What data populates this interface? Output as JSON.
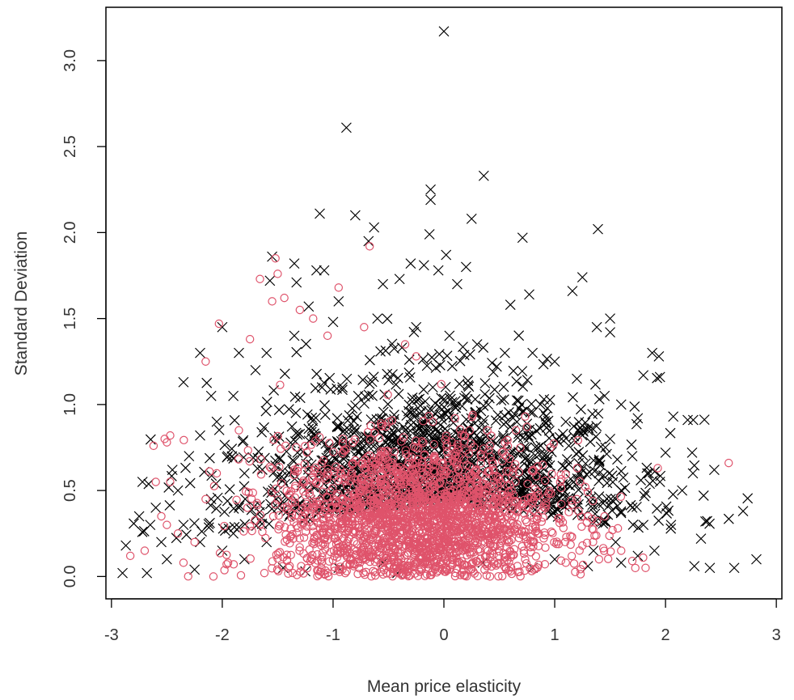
{
  "chart_data": {
    "type": "scatter",
    "title": "",
    "xlabel": "Mean price elasticity",
    "ylabel": "Standard Deviation",
    "xlim": [
      -3.05,
      3.05
    ],
    "ylim": [
      -0.13,
      3.31
    ],
    "x_ticks": [
      -3,
      -2,
      -1,
      0,
      1,
      2,
      3
    ],
    "x_tick_labels": [
      "-3",
      "-2",
      "-1",
      "0",
      "1",
      "2",
      "3"
    ],
    "y_ticks": [
      0.0,
      0.5,
      1.0,
      1.5,
      2.0,
      2.5,
      3.0
    ],
    "y_tick_labels": [
      "0.0",
      "0.5",
      "1.0",
      "1.5",
      "2.0",
      "2.5",
      "3.0"
    ],
    "grid": false,
    "legend": "none",
    "series": [
      {
        "marker": "cross",
        "color": "#000000",
        "points": [
          [
            0.0,
            3.17
          ],
          [
            -0.88,
            2.61
          ],
          [
            0.36,
            2.33
          ],
          [
            -0.12,
            2.25
          ],
          [
            -0.12,
            2.19
          ],
          [
            -1.12,
            2.11
          ],
          [
            -0.8,
            2.1
          ],
          [
            0.25,
            2.08
          ],
          [
            -0.63,
            2.03
          ],
          [
            1.39,
            2.02
          ],
          [
            -0.13,
            1.99
          ],
          [
            0.71,
            1.97
          ],
          [
            -0.68,
            1.95
          ],
          [
            0.02,
            1.87
          ],
          [
            -1.55,
            1.86
          ],
          [
            -1.35,
            1.82
          ],
          [
            -0.3,
            1.82
          ],
          [
            -0.18,
            1.81
          ],
          [
            0.2,
            1.8
          ],
          [
            -1.15,
            1.78
          ],
          [
            -1.08,
            1.78
          ],
          [
            -0.05,
            1.78
          ],
          [
            1.25,
            1.74
          ],
          [
            -0.4,
            1.73
          ],
          [
            -1.57,
            1.72
          ],
          [
            -1.33,
            1.71
          ],
          [
            -0.55,
            1.7
          ],
          [
            0.12,
            1.7
          ],
          [
            1.16,
            1.66
          ],
          [
            0.77,
            1.64
          ],
          [
            -0.95,
            1.6
          ],
          [
            0.6,
            1.58
          ],
          [
            -1.22,
            1.57
          ],
          [
            1.5,
            1.5
          ],
          [
            -2.0,
            1.45
          ],
          [
            1.38,
            1.45
          ],
          [
            1.5,
            1.42
          ],
          [
            1.88,
            1.3
          ],
          [
            1.94,
            1.28
          ],
          [
            -2.35,
            1.13
          ],
          [
            1.95,
            1.16
          ],
          [
            1.8,
            1.17
          ],
          [
            2.25,
            0.91
          ],
          [
            2.2,
            0.91
          ],
          [
            2.07,
            0.93
          ],
          [
            2.44,
            0.62
          ],
          [
            2.7,
            0.38
          ],
          [
            2.82,
            0.1
          ],
          [
            2.62,
            0.05
          ],
          [
            2.4,
            0.05
          ],
          [
            2.26,
            0.06
          ],
          [
            2.32,
            0.22
          ],
          [
            2.36,
            0.32
          ],
          [
            2.24,
            0.72
          ],
          [
            -2.9,
            0.02
          ],
          [
            -2.87,
            0.18
          ],
          [
            -2.68,
            0.02
          ],
          [
            -2.72,
            0.55
          ],
          [
            -2.5,
            0.1
          ],
          [
            -2.25,
            0.04
          ],
          [
            -2.6,
            0.4
          ],
          [
            -2.45,
            0.62
          ],
          [
            -2.2,
            0.2
          ],
          [
            -2.05,
            0.9
          ],
          [
            -1.9,
            1.05
          ],
          [
            -1.7,
            1.2
          ],
          [
            -2.2,
            0.82
          ],
          [
            -2.3,
            0.7
          ],
          [
            -1.95,
            0.7
          ],
          [
            -1.8,
            0.6
          ],
          [
            -2.1,
            0.45
          ],
          [
            -2.4,
            0.5
          ],
          [
            -2.65,
            0.3
          ],
          [
            -2.75,
            0.35
          ],
          [
            -2.55,
            0.2
          ],
          [
            -2.35,
            0.3
          ],
          [
            -1.45,
            0.05
          ],
          [
            -1.25,
            0.03
          ],
          [
            -0.95,
            0.05
          ],
          [
            -0.55,
            0.08
          ],
          [
            -0.42,
            0.02
          ],
          [
            0.35,
            0.08
          ],
          [
            0.8,
            0.05
          ],
          [
            1.0,
            0.1
          ],
          [
            1.3,
            0.06
          ],
          [
            1.6,
            0.08
          ],
          [
            1.75,
            0.12
          ],
          [
            1.9,
            0.15
          ],
          [
            2.05,
            0.3
          ],
          [
            2.15,
            0.5
          ],
          [
            1.95,
            0.55
          ],
          [
            2.0,
            0.72
          ],
          [
            1.75,
            0.92
          ],
          [
            1.6,
            1.0
          ],
          [
            1.45,
            1.05
          ],
          [
            1.2,
            1.15
          ],
          [
            1.0,
            1.25
          ],
          [
            0.8,
            1.3
          ],
          [
            0.55,
            1.3
          ],
          [
            0.3,
            1.35
          ],
          [
            0.05,
            1.4
          ],
          [
            -0.25,
            1.45
          ],
          [
            -0.6,
            1.5
          ],
          [
            -1.0,
            1.48
          ],
          [
            -1.35,
            1.4
          ],
          [
            -1.6,
            1.3
          ],
          [
            -1.85,
            1.3
          ],
          [
            -2.2,
            1.3
          ],
          [
            -2.1,
            1.05
          ],
          [
            1.1,
            0.9
          ],
          [
            1.3,
            0.85
          ],
          [
            1.5,
            0.8
          ],
          [
            1.7,
            0.7
          ],
          [
            1.85,
            0.6
          ],
          [
            0.9,
            0.95
          ],
          [
            0.7,
            1.0
          ],
          [
            0.4,
            1.0
          ],
          [
            0.2,
            1.05
          ],
          [
            -0.1,
            1.1
          ],
          [
            1.4,
            0.6
          ],
          [
            1.6,
            0.5
          ],
          [
            1.7,
            0.4
          ],
          [
            1.8,
            0.3
          ],
          [
            1.55,
            0.2
          ],
          [
            1.35,
            0.15
          ],
          [
            1.2,
            0.4
          ],
          [
            -1.5,
            0.4
          ],
          [
            -1.7,
            0.35
          ],
          [
            -1.9,
            0.25
          ],
          [
            -2.0,
            0.15
          ],
          [
            -1.8,
            0.1
          ],
          [
            -1.6,
            0.2
          ]
        ]
      },
      {
        "marker": "circle",
        "color": "#df536b",
        "points": [
          [
            -0.67,
            1.92
          ],
          [
            -1.52,
            1.85
          ],
          [
            -1.5,
            1.76
          ],
          [
            -1.66,
            1.73
          ],
          [
            -0.95,
            1.68
          ],
          [
            -1.44,
            1.62
          ],
          [
            -1.55,
            1.6
          ],
          [
            -1.3,
            1.55
          ],
          [
            -1.18,
            1.5
          ],
          [
            -2.03,
            1.47
          ],
          [
            -0.72,
            1.45
          ],
          [
            -1.05,
            1.4
          ],
          [
            -1.75,
            1.38
          ],
          [
            -0.35,
            1.35
          ],
          [
            -2.15,
            1.25
          ],
          [
            -0.25,
            1.28
          ],
          [
            -2.5,
            0.78
          ],
          [
            -2.47,
            0.82
          ],
          [
            -2.62,
            0.76
          ],
          [
            -2.52,
            0.8
          ],
          [
            -2.47,
            0.55
          ],
          [
            -2.6,
            0.55
          ],
          [
            -2.5,
            0.3
          ],
          [
            -2.7,
            0.15
          ],
          [
            -2.83,
            0.12
          ],
          [
            -2.55,
            0.35
          ],
          [
            -2.4,
            0.25
          ],
          [
            -2.08,
            0.0
          ],
          [
            -1.62,
            0.02
          ],
          [
            -1.4,
            0.05
          ],
          [
            2.57,
            0.66
          ],
          [
            1.93,
            0.63
          ],
          [
            1.82,
            0.05
          ],
          [
            1.7,
            0.09
          ],
          [
            1.57,
            0.28
          ],
          [
            1.3,
            0.35
          ],
          [
            0.75,
            0.87
          ],
          [
            0.65,
            0.85
          ],
          [
            0.55,
            0.78
          ],
          [
            0.1,
            0.92
          ],
          [
            -0.1,
            0.9
          ],
          [
            1.05,
            0.55
          ],
          [
            1.2,
            0.45
          ],
          [
            1.45,
            0.35
          ],
          [
            -1.85,
            0.85
          ],
          [
            -2.05,
            0.6
          ],
          [
            -2.15,
            0.45
          ],
          [
            -2.25,
            0.2
          ],
          [
            -2.35,
            0.08
          ],
          [
            1.6,
            0.15
          ],
          [
            1.4,
            0.1
          ],
          [
            1.1,
            0.08
          ],
          [
            0.6,
            0.03
          ]
        ],
        "cloud": {
          "x_mean": -0.25,
          "x_sd": 0.62,
          "y_mean": 0.33,
          "y_sd": 0.22,
          "n": 2200
        }
      }
    ]
  }
}
